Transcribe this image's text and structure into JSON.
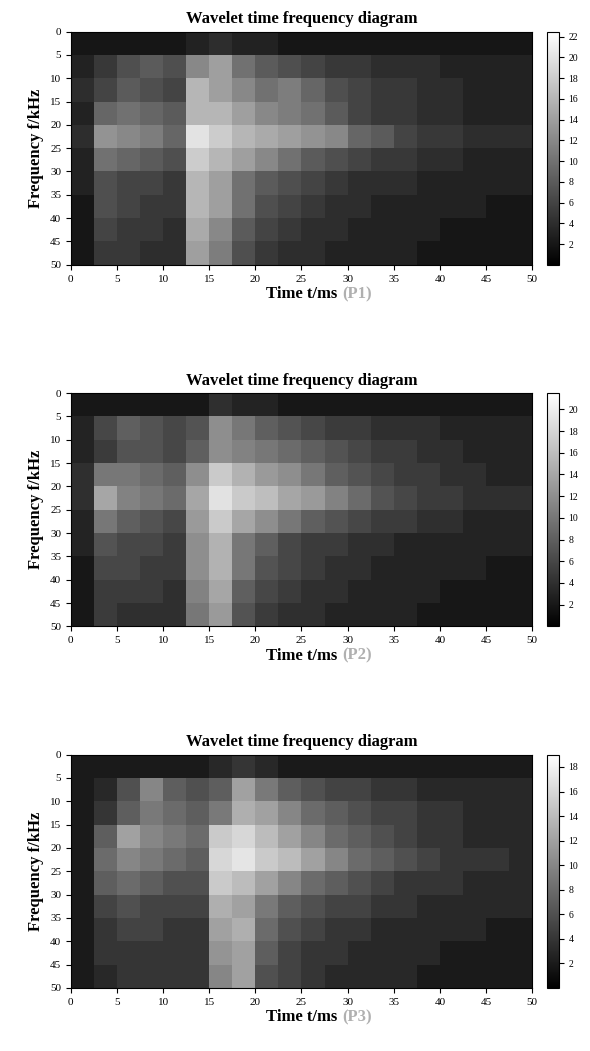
{
  "chart_data": [
    {
      "type": "heatmap",
      "title": "Wavelet time frequency diagram",
      "xlabel": "Time t/ms",
      "ylabel": "Frequency f/kHz",
      "panel_label": "(P1)",
      "color": "gray",
      "x_edges": [
        0,
        2.5,
        5,
        7.5,
        10,
        12.5,
        15,
        17.5,
        20,
        22.5,
        25,
        27.5,
        30,
        32.5,
        35,
        37.5,
        40,
        42.5,
        45,
        47.5,
        50
      ],
      "y_edges": [
        0,
        5,
        10,
        15,
        20,
        25,
        30,
        35,
        40,
        45,
        50
      ],
      "cells": [
        [
          2,
          2,
          2,
          2,
          2,
          3,
          4,
          3,
          3,
          2,
          2,
          2,
          2,
          2,
          2,
          2,
          2,
          2,
          2,
          2
        ],
        [
          3,
          5,
          7,
          8,
          7,
          12,
          14,
          10,
          8,
          7,
          6,
          5,
          5,
          4,
          4,
          4,
          3,
          3,
          3,
          3
        ],
        [
          4,
          6,
          8,
          7,
          6,
          16,
          14,
          12,
          10,
          11,
          9,
          7,
          6,
          5,
          5,
          4,
          4,
          3,
          3,
          3
        ],
        [
          3,
          9,
          10,
          9,
          8,
          16,
          16,
          14,
          12,
          11,
          10,
          8,
          6,
          5,
          5,
          4,
          4,
          3,
          3,
          3
        ],
        [
          4,
          13,
          12,
          11,
          9,
          20,
          18,
          16,
          15,
          14,
          13,
          12,
          9,
          8,
          6,
          5,
          5,
          4,
          4,
          4
        ],
        [
          3,
          10,
          9,
          8,
          7,
          18,
          16,
          14,
          12,
          10,
          8,
          7,
          6,
          5,
          5,
          4,
          4,
          3,
          3,
          3
        ],
        [
          3,
          7,
          6,
          6,
          5,
          16,
          14,
          10,
          8,
          7,
          6,
          5,
          4,
          4,
          4,
          3,
          3,
          3,
          3,
          3
        ],
        [
          2,
          7,
          6,
          5,
          5,
          16,
          14,
          10,
          7,
          6,
          5,
          4,
          4,
          3,
          3,
          3,
          3,
          3,
          2,
          2
        ],
        [
          2,
          6,
          5,
          5,
          4,
          15,
          12,
          8,
          6,
          5,
          4,
          4,
          3,
          3,
          3,
          3,
          2,
          2,
          2,
          2
        ],
        [
          2,
          5,
          5,
          4,
          4,
          14,
          11,
          7,
          5,
          4,
          4,
          3,
          3,
          3,
          3,
          2,
          2,
          2,
          2,
          2
        ]
      ],
      "xlim": [
        0,
        50
      ],
      "ylim": [
        50,
        0
      ],
      "xticks": [
        0,
        5,
        10,
        15,
        20,
        25,
        30,
        35,
        40,
        45,
        50
      ],
      "yticks": [
        0,
        5,
        10,
        15,
        20,
        25,
        30,
        35,
        40,
        45,
        50
      ],
      "colorbar_range": [
        0,
        22.5
      ],
      "colorbar_ticks": [
        2,
        4,
        6,
        8,
        10,
        12,
        14,
        16,
        18,
        20,
        22
      ]
    },
    {
      "type": "heatmap",
      "title": "Wavelet time frequency diagram",
      "xlabel": "Time t/ms",
      "ylabel": "Frequency f/kHz",
      "panel_label": "(P2)",
      "color": "gray",
      "x_edges": [
        0,
        2.5,
        5,
        7.5,
        10,
        12.5,
        15,
        17.5,
        20,
        22.5,
        25,
        27.5,
        30,
        32.5,
        35,
        37.5,
        40,
        42.5,
        45,
        47.5,
        50
      ],
      "y_edges": [
        0,
        5,
        10,
        15,
        20,
        25,
        30,
        35,
        40,
        45,
        50
      ],
      "cells": [
        [
          2,
          2,
          2,
          2,
          2,
          2,
          4,
          3,
          3,
          2,
          2,
          2,
          2,
          2,
          2,
          2,
          2,
          2,
          2,
          2
        ],
        [
          3,
          6,
          8,
          7,
          6,
          7,
          12,
          10,
          8,
          7,
          6,
          5,
          5,
          4,
          4,
          4,
          3,
          3,
          3,
          3
        ],
        [
          3,
          5,
          7,
          7,
          6,
          8,
          12,
          11,
          10,
          9,
          8,
          7,
          6,
          5,
          5,
          4,
          4,
          3,
          3,
          3
        ],
        [
          4,
          10,
          10,
          9,
          8,
          12,
          17,
          15,
          13,
          12,
          10,
          8,
          7,
          6,
          5,
          5,
          4,
          4,
          3,
          3
        ],
        [
          4,
          14,
          11,
          10,
          9,
          14,
          19,
          17,
          16,
          14,
          13,
          11,
          9,
          7,
          6,
          5,
          5,
          4,
          4,
          4
        ],
        [
          3,
          10,
          8,
          7,
          6,
          13,
          17,
          14,
          12,
          10,
          8,
          7,
          6,
          5,
          5,
          4,
          4,
          3,
          3,
          3
        ],
        [
          3,
          7,
          6,
          6,
          5,
          12,
          15,
          10,
          8,
          6,
          5,
          5,
          4,
          4,
          3,
          3,
          3,
          3,
          3,
          3
        ],
        [
          2,
          6,
          6,
          5,
          5,
          12,
          15,
          10,
          7,
          6,
          5,
          4,
          4,
          3,
          3,
          3,
          3,
          3,
          2,
          2
        ],
        [
          2,
          5,
          5,
          5,
          4,
          11,
          14,
          8,
          6,
          5,
          4,
          4,
          3,
          3,
          3,
          3,
          2,
          2,
          2,
          2
        ],
        [
          2,
          5,
          4,
          4,
          4,
          10,
          13,
          7,
          5,
          4,
          4,
          3,
          3,
          3,
          3,
          2,
          2,
          2,
          2,
          2
        ]
      ],
      "xlim": [
        0,
        50
      ],
      "ylim": [
        50,
        0
      ],
      "xticks": [
        0,
        5,
        10,
        15,
        20,
        25,
        30,
        35,
        40,
        45,
        50
      ],
      "yticks": [
        0,
        5,
        10,
        15,
        20,
        25,
        30,
        35,
        40,
        45,
        50
      ],
      "colorbar_range": [
        0,
        21.5
      ],
      "colorbar_ticks": [
        2,
        4,
        6,
        8,
        10,
        12,
        14,
        16,
        18,
        20
      ]
    },
    {
      "type": "heatmap",
      "title": "Wavelet time frequency diagram",
      "xlabel": "Time t/ms",
      "ylabel": "Frequency f/kHz",
      "panel_label": "(P3)",
      "color": "gray",
      "x_edges": [
        0,
        2.5,
        5,
        7.5,
        10,
        12.5,
        15,
        17.5,
        20,
        22.5,
        25,
        27.5,
        30,
        32.5,
        35,
        37.5,
        40,
        42.5,
        45,
        47.5,
        50
      ],
      "y_edges": [
        0,
        5,
        10,
        15,
        20,
        25,
        30,
        35,
        40,
        45,
        50
      ],
      "cells": [
        [
          2,
          2,
          2,
          2,
          2,
          2,
          3,
          4,
          3,
          2,
          2,
          2,
          2,
          2,
          2,
          2,
          2,
          2,
          2,
          2
        ],
        [
          2,
          3,
          6,
          10,
          7,
          6,
          7,
          12,
          9,
          7,
          6,
          5,
          5,
          4,
          4,
          3,
          3,
          3,
          3,
          3
        ],
        [
          2,
          4,
          7,
          9,
          8,
          7,
          9,
          13,
          12,
          10,
          8,
          7,
          6,
          5,
          5,
          4,
          4,
          3,
          3,
          3
        ],
        [
          2,
          7,
          12,
          10,
          9,
          8,
          15,
          16,
          14,
          12,
          10,
          8,
          7,
          6,
          5,
          4,
          4,
          3,
          3,
          3
        ],
        [
          2,
          8,
          10,
          9,
          8,
          7,
          16,
          17,
          15,
          14,
          12,
          10,
          8,
          7,
          6,
          5,
          4,
          4,
          4,
          3
        ],
        [
          2,
          7,
          8,
          7,
          6,
          6,
          15,
          14,
          12,
          10,
          8,
          7,
          6,
          5,
          4,
          4,
          4,
          3,
          3,
          3
        ],
        [
          2,
          5,
          6,
          5,
          5,
          5,
          13,
          12,
          9,
          7,
          6,
          5,
          5,
          4,
          4,
          3,
          3,
          3,
          3,
          3
        ],
        [
          2,
          4,
          5,
          5,
          4,
          4,
          12,
          13,
          8,
          6,
          5,
          4,
          4,
          3,
          3,
          3,
          3,
          3,
          2,
          2
        ],
        [
          2,
          4,
          4,
          4,
          4,
          4,
          11,
          12,
          7,
          5,
          4,
          4,
          3,
          3,
          3,
          3,
          2,
          2,
          2,
          2
        ],
        [
          2,
          3,
          4,
          4,
          4,
          4,
          10,
          12,
          6,
          5,
          4,
          3,
          3,
          3,
          3,
          2,
          2,
          2,
          2,
          2
        ]
      ],
      "xlim": [
        0,
        50
      ],
      "ylim": [
        50,
        0
      ],
      "xticks": [
        0,
        5,
        10,
        15,
        20,
        25,
        30,
        35,
        40,
        45,
        50
      ],
      "yticks": [
        0,
        5,
        10,
        15,
        20,
        25,
        30,
        35,
        40,
        45,
        50
      ],
      "colorbar_range": [
        0,
        19
      ],
      "colorbar_ticks": [
        2,
        4,
        6,
        8,
        10,
        12,
        14,
        16,
        18
      ]
    }
  ]
}
